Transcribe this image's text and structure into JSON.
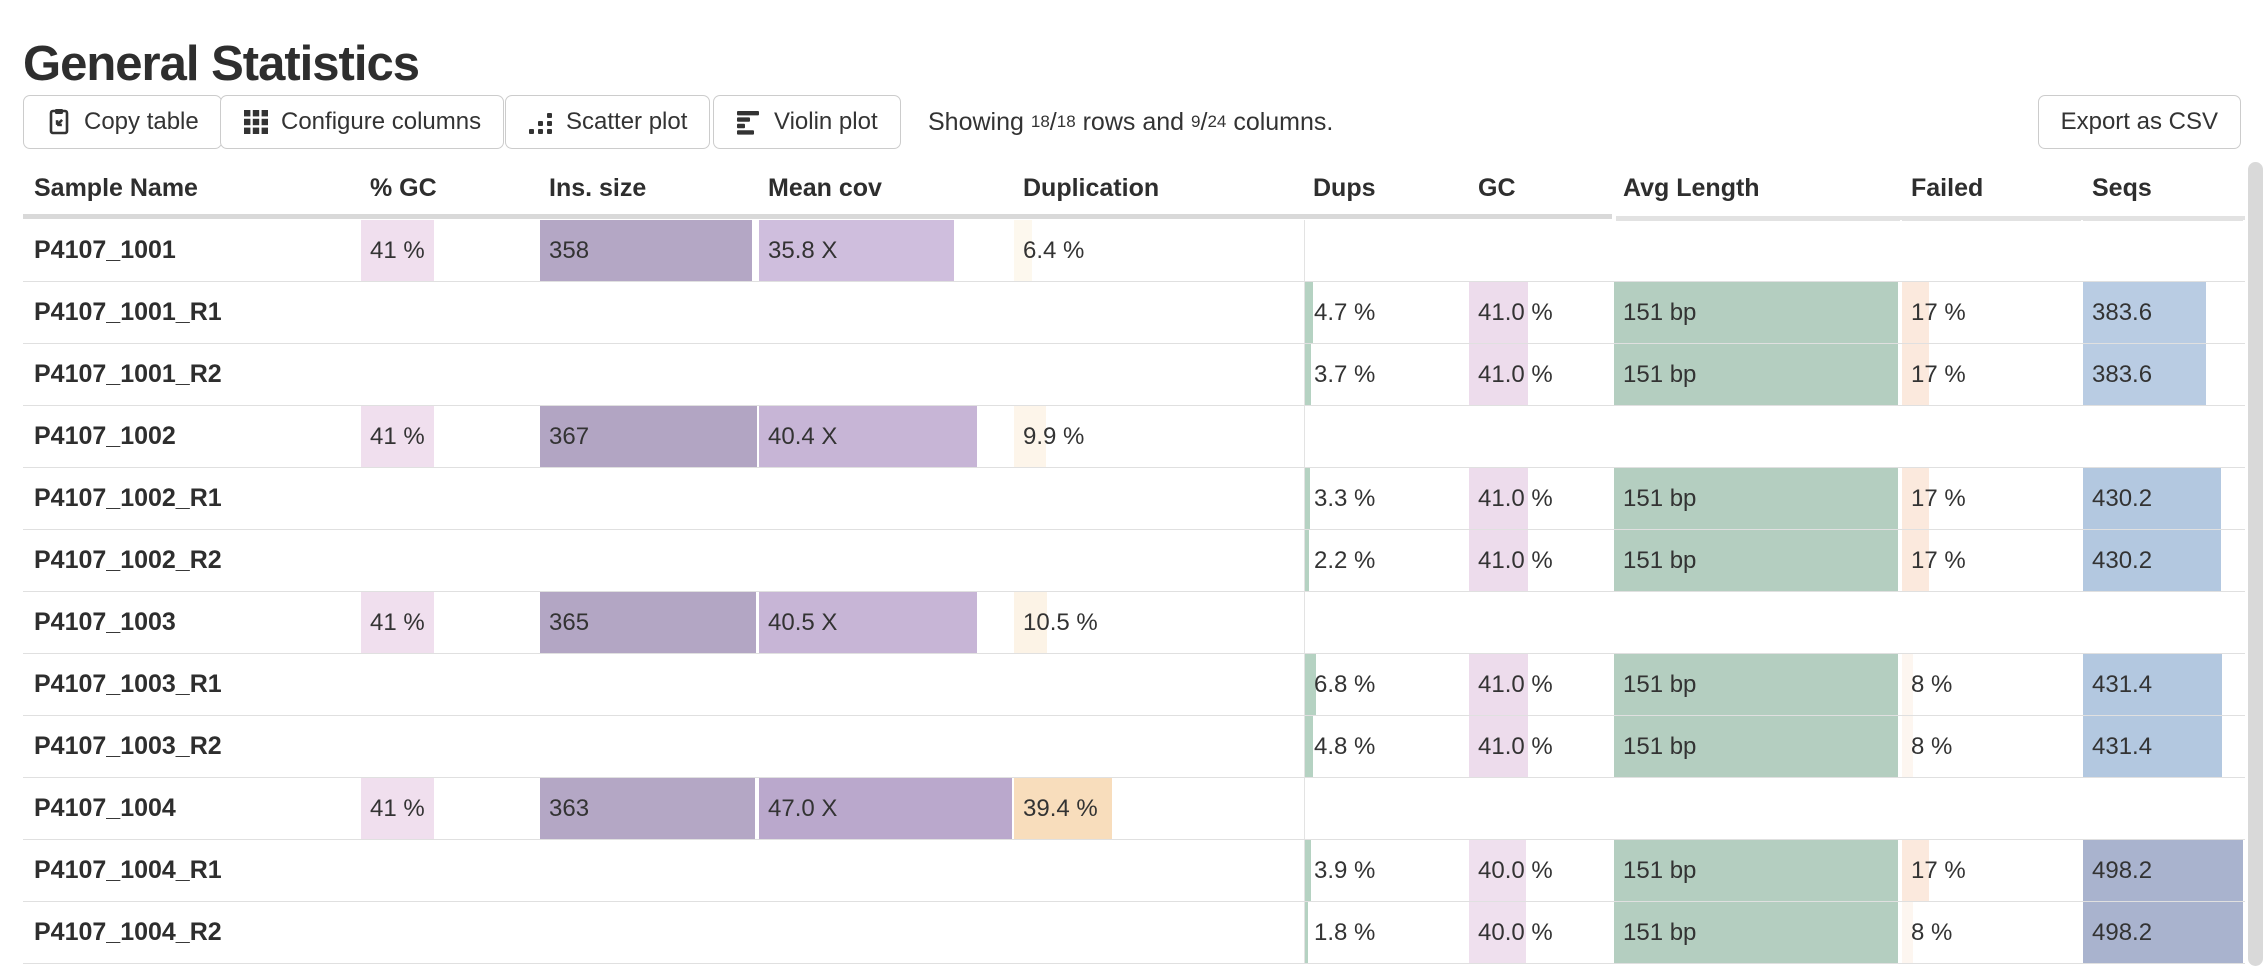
{
  "page": {
    "title": "General Statistics"
  },
  "toolbar": {
    "buttons": [
      {
        "id": "copy-table",
        "label": "Copy table",
        "icon": "clipboard-icon"
      },
      {
        "id": "configure-columns",
        "label": "Configure columns",
        "icon": "grid-icon"
      },
      {
        "id": "scatter-plot",
        "label": "Scatter plot",
        "icon": "scatter-dots-icon"
      },
      {
        "id": "violin-plot",
        "label": "Violin plot",
        "icon": "violin-bars-icon"
      }
    ],
    "showing": {
      "prefix": "Showing",
      "rows_shown": "18",
      "rows_total": "18",
      "middle": "rows and",
      "cols_shown": "9",
      "cols_total": "24",
      "suffix": "columns."
    },
    "export_label": "Export as CSV"
  },
  "table": {
    "columns": [
      {
        "id": "sample",
        "label": "Sample Name"
      },
      {
        "id": "pct_gc",
        "label": "% GC"
      },
      {
        "id": "ins_size",
        "label": "Ins. size"
      },
      {
        "id": "mean_cov",
        "label": "Mean cov"
      },
      {
        "id": "duplication",
        "label": "Duplication"
      },
      {
        "id": "dups",
        "label": "Dups"
      },
      {
        "id": "gc",
        "label": "GC"
      },
      {
        "id": "avg_length",
        "label": "Avg Length"
      },
      {
        "id": "failed",
        "label": "Failed"
      },
      {
        "id": "seqs",
        "label": "Seqs"
      }
    ],
    "rows": [
      {
        "sample": "P4107_1001",
        "cells": {
          "pct_gc": {
            "text": "41 %",
            "bar_pct": 41,
            "bar_color": "#f0dfee"
          },
          "ins_size": {
            "text": "358",
            "bar_pct": 97.5,
            "bar_color": "#b4a7c5"
          },
          "mean_cov": {
            "text": "35.8 X",
            "bar_pct": 77,
            "bar_color": "#cfbedd"
          },
          "duplication": {
            "text": "6.4 %",
            "bar_pct": 6.4,
            "bar_color": "#fdf8ee"
          }
        }
      },
      {
        "sample": "P4107_1001_R1",
        "cells": {
          "dups": {
            "text": "4.7 %",
            "bar_pct": 4.7,
            "bar_color": "#b5d2c2"
          },
          "gc": {
            "text": "41.0 %",
            "bar_pct": 41,
            "bar_color": "#eddcec"
          },
          "avg_length": {
            "text": "151 bp",
            "bar_pct": 99.3,
            "bar_color": "#b4cec0"
          },
          "failed": {
            "text": "17 %",
            "bar_pct": 15,
            "bar_color": "#fbe9dd"
          },
          "seqs": {
            "text": "383.6",
            "bar_pct": 77,
            "bar_color": "#b9cce3"
          }
        }
      },
      {
        "sample": "P4107_1001_R2",
        "cells": {
          "dups": {
            "text": "3.7 %",
            "bar_pct": 3.7,
            "bar_color": "#b5d2c2"
          },
          "gc": {
            "text": "41.0 %",
            "bar_pct": 41,
            "bar_color": "#eddcec"
          },
          "avg_length": {
            "text": "151 bp",
            "bar_pct": 99.3,
            "bar_color": "#b4cec0"
          },
          "failed": {
            "text": "17 %",
            "bar_pct": 15,
            "bar_color": "#fbe9dd"
          },
          "seqs": {
            "text": "383.6",
            "bar_pct": 77,
            "bar_color": "#b9cce3"
          }
        }
      },
      {
        "sample": "P4107_1002",
        "cells": {
          "pct_gc": {
            "text": "41 %",
            "bar_pct": 41,
            "bar_color": "#f0dfee"
          },
          "ins_size": {
            "text": "367",
            "bar_pct": 100,
            "bar_color": "#b2a5c3"
          },
          "mean_cov": {
            "text": "40.4 X",
            "bar_pct": 86,
            "bar_color": "#c7b5d6"
          },
          "duplication": {
            "text": "9.9 %",
            "bar_pct": 11,
            "bar_color": "#fdf5ea"
          }
        }
      },
      {
        "sample": "P4107_1002_R1",
        "cells": {
          "dups": {
            "text": "3.3 %",
            "bar_pct": 3.3,
            "bar_color": "#b5d2c2"
          },
          "gc": {
            "text": "41.0 %",
            "bar_pct": 41,
            "bar_color": "#eddcec"
          },
          "avg_length": {
            "text": "151 bp",
            "bar_pct": 99.3,
            "bar_color": "#b4cec0"
          },
          "failed": {
            "text": "17 %",
            "bar_pct": 15,
            "bar_color": "#fbe9dd"
          },
          "seqs": {
            "text": "430.2",
            "bar_pct": 86.3,
            "bar_color": "#b3c8e0"
          }
        }
      },
      {
        "sample": "P4107_1002_R2",
        "cells": {
          "dups": {
            "text": "2.2 %",
            "bar_pct": 2.2,
            "bar_color": "#b5d2c2"
          },
          "gc": {
            "text": "41.0 %",
            "bar_pct": 41,
            "bar_color": "#eddcec"
          },
          "avg_length": {
            "text": "151 bp",
            "bar_pct": 99.3,
            "bar_color": "#b4cec0"
          },
          "failed": {
            "text": "17 %",
            "bar_pct": 15,
            "bar_color": "#fbe9dd"
          },
          "seqs": {
            "text": "430.2",
            "bar_pct": 86.3,
            "bar_color": "#b3c8e0"
          }
        }
      },
      {
        "sample": "P4107_1003",
        "cells": {
          "pct_gc": {
            "text": "41 %",
            "bar_pct": 41,
            "bar_color": "#f0dfee"
          },
          "ins_size": {
            "text": "365",
            "bar_pct": 99.5,
            "bar_color": "#b3a6c4"
          },
          "mean_cov": {
            "text": "40.5 X",
            "bar_pct": 86,
            "bar_color": "#c7b5d6"
          },
          "duplication": {
            "text": "10.5 %",
            "bar_pct": 11.5,
            "bar_color": "#fcf3e6"
          }
        }
      },
      {
        "sample": "P4107_1003_R1",
        "cells": {
          "dups": {
            "text": "6.8 %",
            "bar_pct": 6.8,
            "bar_color": "#b5d2c2"
          },
          "gc": {
            "text": "41.0 %",
            "bar_pct": 41,
            "bar_color": "#eddcec"
          },
          "avg_length": {
            "text": "151 bp",
            "bar_pct": 99.3,
            "bar_color": "#b4cec0"
          },
          "failed": {
            "text": "8 %",
            "bar_pct": 6,
            "bar_color": "#fdf6f0"
          },
          "seqs": {
            "text": "431.4",
            "bar_pct": 86.6,
            "bar_color": "#b3c8e0"
          }
        }
      },
      {
        "sample": "P4107_1003_R2",
        "cells": {
          "dups": {
            "text": "4.8 %",
            "bar_pct": 4.8,
            "bar_color": "#b5d2c2"
          },
          "gc": {
            "text": "41.0 %",
            "bar_pct": 41,
            "bar_color": "#eddcec"
          },
          "avg_length": {
            "text": "151 bp",
            "bar_pct": 99.3,
            "bar_color": "#b4cec0"
          },
          "failed": {
            "text": "8 %",
            "bar_pct": 6,
            "bar_color": "#fdf6f0"
          },
          "seqs": {
            "text": "431.4",
            "bar_pct": 86.6,
            "bar_color": "#b3c8e0"
          }
        }
      },
      {
        "sample": "P4107_1004",
        "cells": {
          "pct_gc": {
            "text": "41 %",
            "bar_pct": 41,
            "bar_color": "#f0dfee"
          },
          "ins_size": {
            "text": "363",
            "bar_pct": 98.9,
            "bar_color": "#b4a7c5"
          },
          "mean_cov": {
            "text": "47.0 X",
            "bar_pct": 100,
            "bar_color": "#baa8cc"
          },
          "duplication": {
            "text": "39.4 %",
            "bar_pct": 34,
            "bar_color": "#f8ddbc"
          }
        }
      },
      {
        "sample": "P4107_1004_R1",
        "cells": {
          "dups": {
            "text": "3.9 %",
            "bar_pct": 3.9,
            "bar_color": "#b5d2c2"
          },
          "gc": {
            "text": "40.0 %",
            "bar_pct": 40,
            "bar_color": "#efe0ee"
          },
          "avg_length": {
            "text": "151 bp",
            "bar_pct": 99.3,
            "bar_color": "#b4cec0"
          },
          "failed": {
            "text": "17 %",
            "bar_pct": 15,
            "bar_color": "#fbe9dd"
          },
          "seqs": {
            "text": "498.2",
            "bar_pct": 100,
            "bar_color": "#a9b3ce"
          }
        }
      },
      {
        "sample": "P4107_1004_R2",
        "cells": {
          "dups": {
            "text": "1.8 %",
            "bar_pct": 1.8,
            "bar_color": "#b5d2c2"
          },
          "gc": {
            "text": "40.0 %",
            "bar_pct": 40,
            "bar_color": "#efe0ee"
          },
          "avg_length": {
            "text": "151 bp",
            "bar_pct": 99.3,
            "bar_color": "#b4cec0"
          },
          "failed": {
            "text": "8 %",
            "bar_pct": 6,
            "bar_color": "#fdf6f0"
          },
          "seqs": {
            "text": "498.2",
            "bar_pct": 100,
            "bar_color": "#a9b3ce"
          }
        }
      }
    ]
  },
  "scrollbar": {
    "orientation": "vertical"
  },
  "colors": {
    "text": "#333333",
    "border_row": "#e0e0e0",
    "header_underline_left": "#d9d9d9",
    "header_underline_right": "#e2e2e2",
    "button_border": "#cccccc",
    "scrollbar": "#d9d9d9"
  }
}
